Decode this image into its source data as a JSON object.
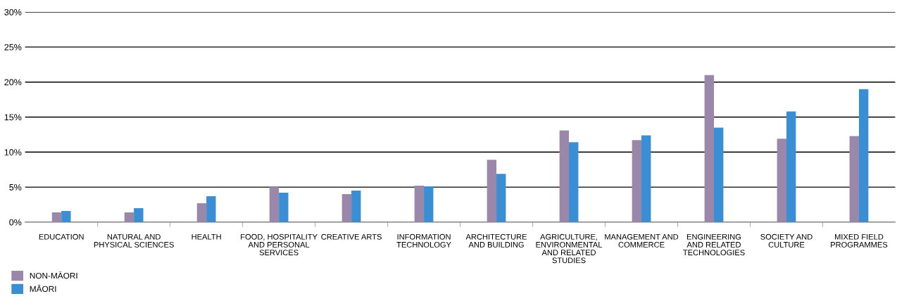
{
  "chart_data": {
    "type": "bar",
    "categories": [
      "EDUCATION",
      "NATURAL AND\nPHYSICAL SCIENCES",
      "HEALTH",
      "FOOD, HOSPITALITY\nAND PERSONAL\nSERVICES",
      "CREATIVE ARTS",
      "INFORMATION\nTECHNOLOGY",
      "ARCHITECTURE\nAND BUILDING",
      "AGRICULTURE,\nENVIRONMENTAL\nAND RELATED\nSTUDIES",
      "MANAGEMENT AND\nCOMMERCE",
      "ENGINEERING\nAND RELATED\nTECHNOLOGIES",
      "SOCIETY AND\nCULTURE",
      "MIXED FIELD\nPROGRAMMES"
    ],
    "series": [
      {
        "name": "NON-MĀORI",
        "color": "#9b87aa",
        "values": [
          1.4,
          1.4,
          2.7,
          5.0,
          4.0,
          5.2,
          8.9,
          13.1,
          11.7,
          21.0,
          11.9,
          12.3
        ]
      },
      {
        "name": "MĀORI",
        "color": "#3a8ed3",
        "values": [
          1.6,
          2.0,
          3.7,
          4.2,
          4.5,
          5.1,
          6.9,
          11.4,
          12.4,
          13.5,
          15.8,
          19.0
        ]
      }
    ],
    "ylim": [
      0,
      30
    ],
    "yticks": [
      {
        "value": 0,
        "label": "0%"
      },
      {
        "value": 5,
        "label": "5%"
      },
      {
        "value": 10,
        "label": "10%"
      },
      {
        "value": 15,
        "label": "15%"
      },
      {
        "value": 20,
        "label": "20%"
      },
      {
        "value": 25,
        "label": "25%"
      },
      {
        "value": 30,
        "label": "30%"
      }
    ],
    "grid": "y",
    "legend": "bottom left"
  }
}
